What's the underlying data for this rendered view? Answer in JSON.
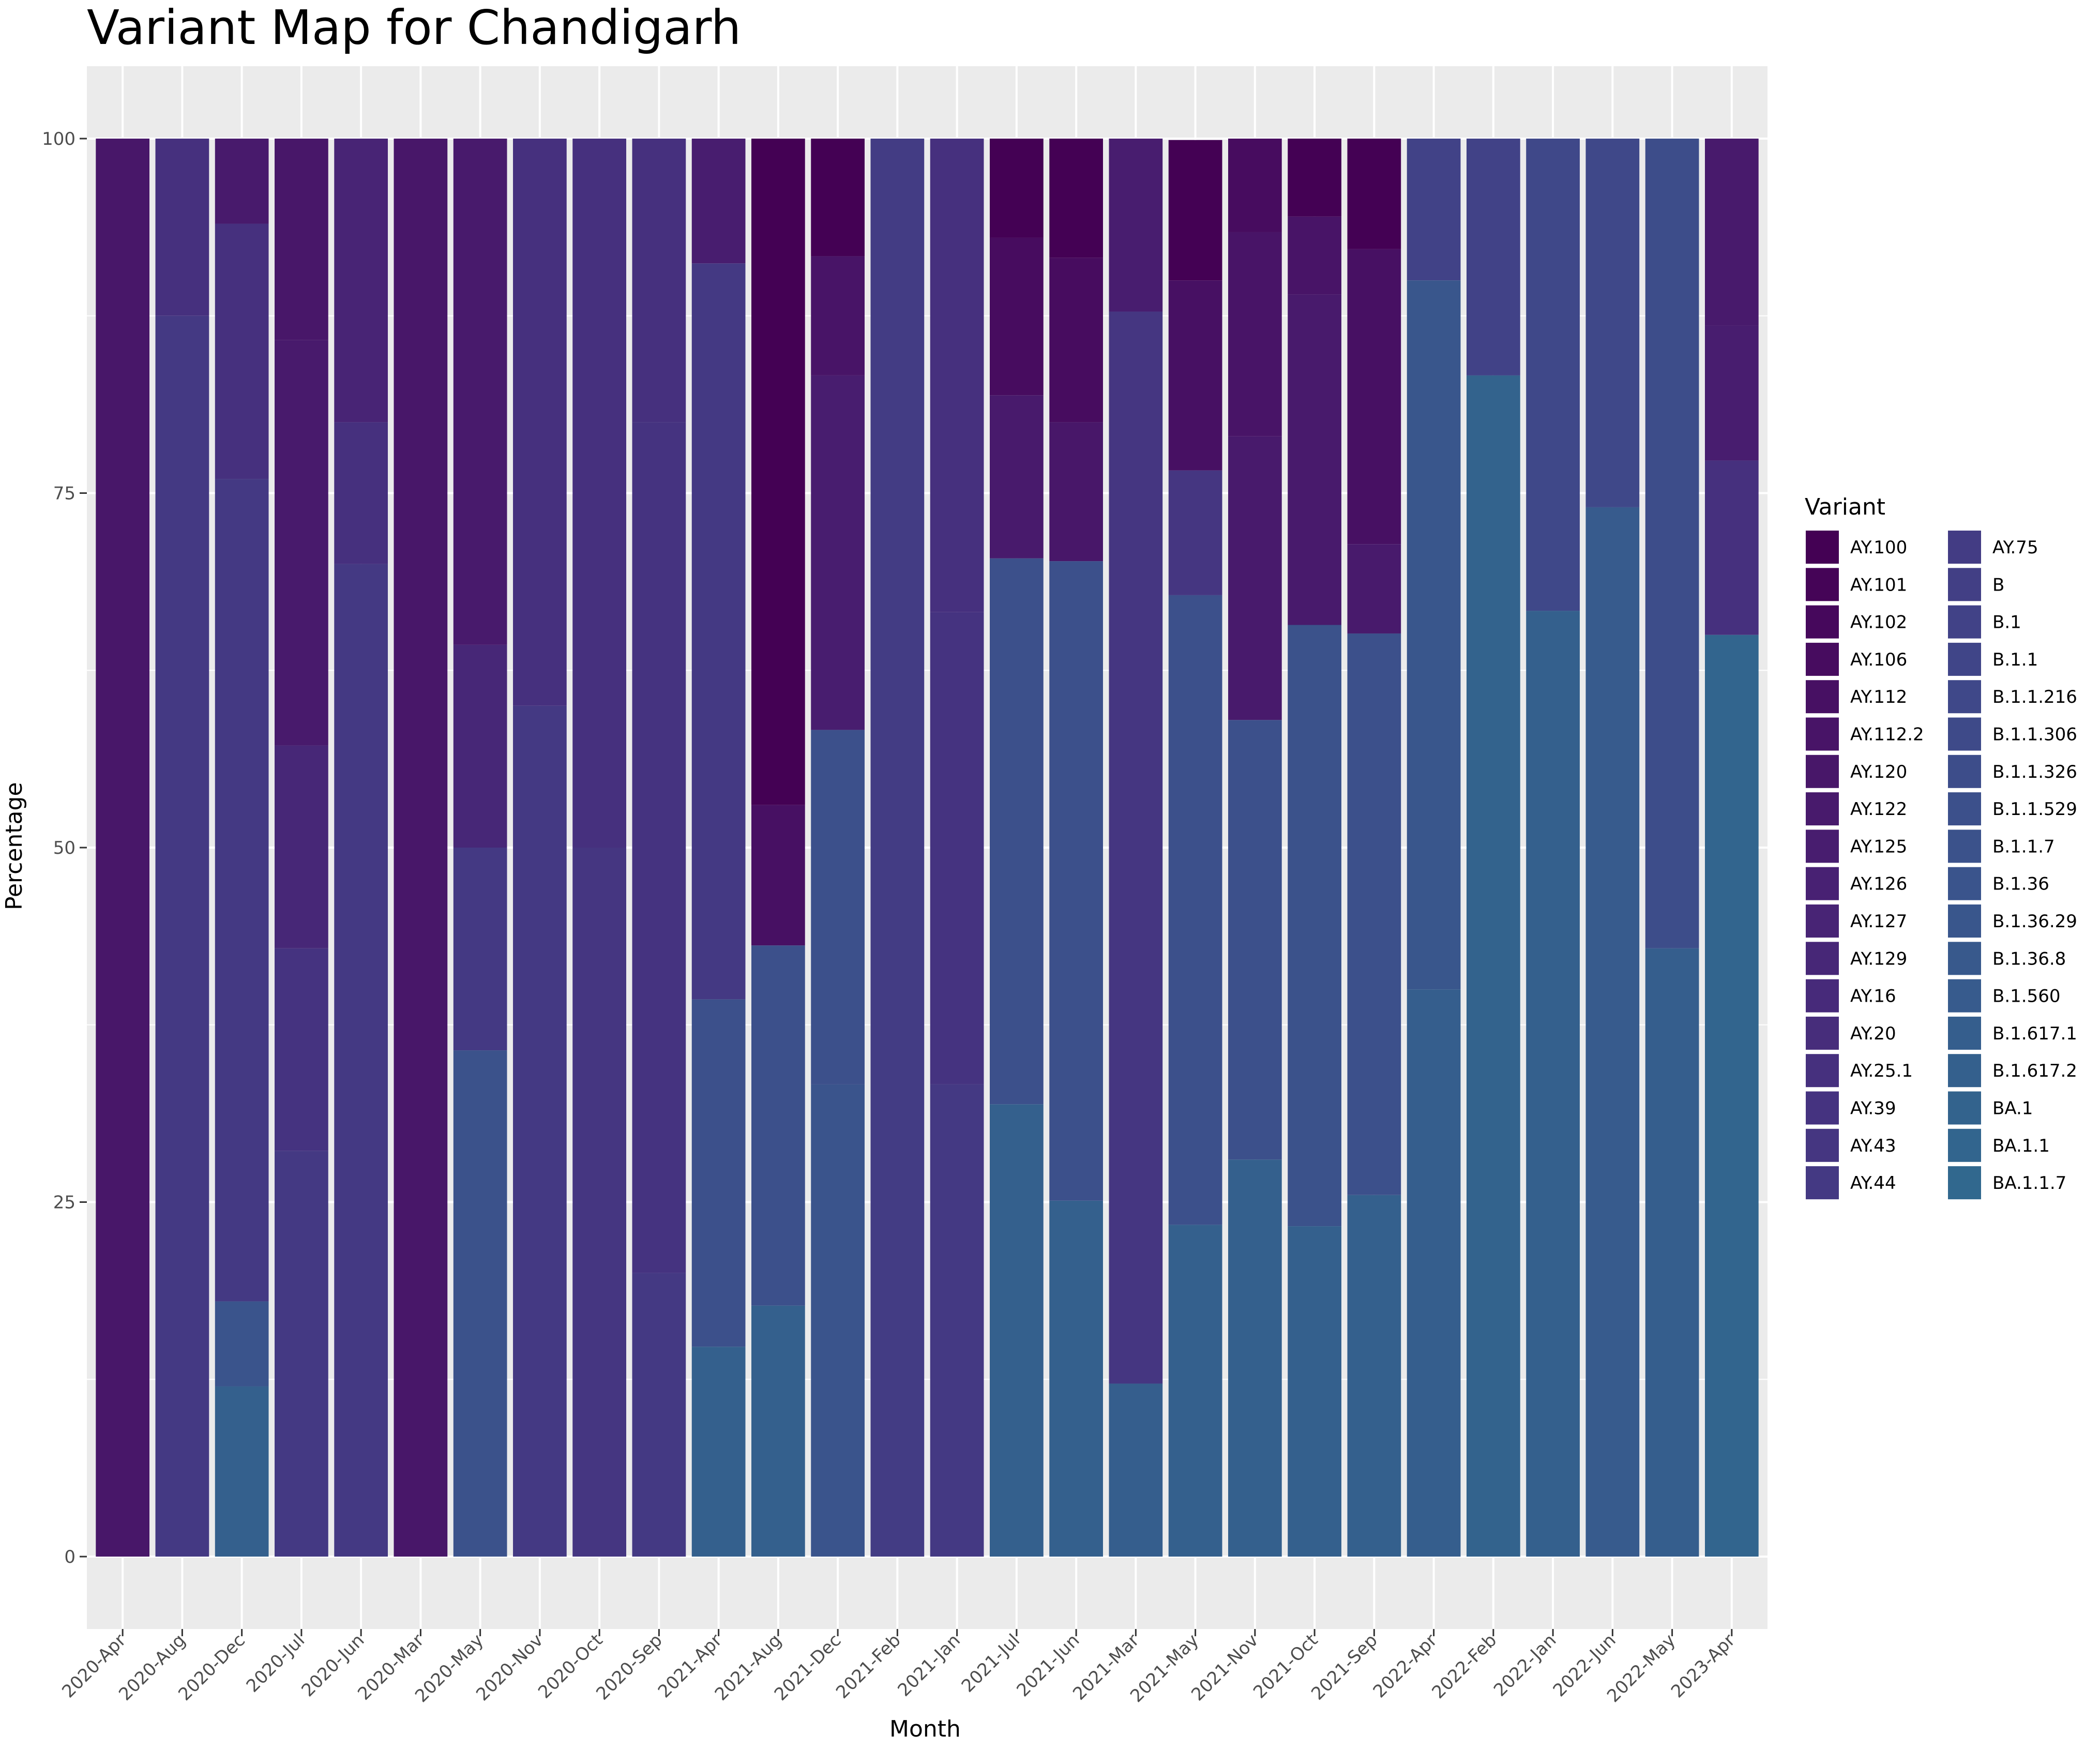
{
  "chart_data": {
    "type": "bar",
    "stacked": true,
    "title": "Variant Map for Chandigarh",
    "xlabel": "Month",
    "ylabel": "Percentage",
    "ylim": [
      0,
      100
    ],
    "yticks": [
      0,
      25,
      50,
      75,
      100
    ],
    "grid": true,
    "legend": {
      "title": "Variant",
      "placement": "right",
      "columns": 2
    },
    "categories": [
      "2020-Apr",
      "2020-Aug",
      "2020-Dec",
      "2020-Jul",
      "2020-Jun",
      "2020-Mar",
      "2020-May",
      "2020-Nov",
      "2020-Oct",
      "2020-Sep",
      "2021-Apr",
      "2021-Aug",
      "2021-Dec",
      "2021-Feb",
      "2021-Jan",
      "2021-Jul",
      "2021-Jun",
      "2021-Mar",
      "2021-May",
      "2021-Nov",
      "2021-Oct",
      "2021-Sep",
      "2022-Apr",
      "2022-Feb",
      "2022-Jan",
      "2022-Jun",
      "2022-May",
      "2023-Apr"
    ],
    "variants": [
      {
        "name": "AY.100",
        "color": "#440154"
      },
      {
        "name": "AY.101",
        "color": "#450457"
      },
      {
        "name": "AY.102",
        "color": "#46085C"
      },
      {
        "name": "AY.106",
        "color": "#470C5F"
      },
      {
        "name": "AY.112",
        "color": "#471063"
      },
      {
        "name": "AY.112.2",
        "color": "#481467"
      },
      {
        "name": "AY.120",
        "color": "#481769"
      },
      {
        "name": "AY.122",
        "color": "#481A6C"
      },
      {
        "name": "AY.125",
        "color": "#481D6F"
      },
      {
        "name": "AY.126",
        "color": "#482173"
      },
      {
        "name": "AY.127",
        "color": "#482475"
      },
      {
        "name": "AY.129",
        "color": "#472777"
      },
      {
        "name": "AY.16",
        "color": "#472A7A"
      },
      {
        "name": "AY.20",
        "color": "#472D7B"
      },
      {
        "name": "AY.25.1",
        "color": "#46307E"
      },
      {
        "name": "AY.39",
        "color": "#453380"
      },
      {
        "name": "AY.43",
        "color": "#453681"
      },
      {
        "name": "AY.44",
        "color": "#443983"
      },
      {
        "name": "AY.75",
        "color": "#433C84"
      },
      {
        "name": "B",
        "color": "#423F85"
      },
      {
        "name": "B.1",
        "color": "#414287"
      },
      {
        "name": "B.1.1",
        "color": "#404588"
      },
      {
        "name": "B.1.1.216",
        "color": "#3F4889"
      },
      {
        "name": "B.1.1.306",
        "color": "#3E4A89"
      },
      {
        "name": "B.1.1.326",
        "color": "#3D4D8A"
      },
      {
        "name": "B.1.1.529",
        "color": "#3C508B"
      },
      {
        "name": "B.1.1.7",
        "color": "#3B528B"
      },
      {
        "name": "B.1.36",
        "color": "#3A548C"
      },
      {
        "name": "B.1.36.29",
        "color": "#39568C"
      },
      {
        "name": "B.1.36.8",
        "color": "#38598C"
      },
      {
        "name": "B.1.560",
        "color": "#375B8D"
      },
      {
        "name": "B.1.617.1",
        "color": "#355E8D"
      },
      {
        "name": "B.1.617.2",
        "color": "#34608D"
      },
      {
        "name": "BA.1",
        "color": "#33638D"
      },
      {
        "name": "BA.1.1",
        "color": "#32658E"
      },
      {
        "name": "BA.1.1.7",
        "color": "#31688E"
      }
    ],
    "stacks": [
      [
        {
          "v": "AY.120",
          "value": 100
        }
      ],
      [
        {
          "v": "AY.44",
          "value": 87.5
        },
        {
          "v": "AY.25.1",
          "value": 12.5
        }
      ],
      [
        {
          "v": "B.1.617.2",
          "value": 12
        },
        {
          "v": "B.1.36",
          "value": 6
        },
        {
          "v": "AY.44",
          "value": 58
        },
        {
          "v": "AY.25.1",
          "value": 18
        },
        {
          "v": "AY.122",
          "value": 6
        }
      ],
      [
        {
          "v": "AY.44",
          "value": 28.6
        },
        {
          "v": "AY.39",
          "value": 14.3
        },
        {
          "v": "AY.129",
          "value": 14.3
        },
        {
          "v": "AY.122",
          "value": 28.6
        },
        {
          "v": "AY.120",
          "value": 14.2
        }
      ],
      [
        {
          "v": "AY.44",
          "value": 70
        },
        {
          "v": "AY.25.1",
          "value": 10
        },
        {
          "v": "AY.127",
          "value": 20
        }
      ],
      [
        {
          "v": "AY.120",
          "value": 100
        }
      ],
      [
        {
          "v": "B.1.1.7",
          "value": 35.7
        },
        {
          "v": "AY.44",
          "value": 14.3
        },
        {
          "v": "AY.129",
          "value": 14.3
        },
        {
          "v": "AY.122",
          "value": 35.7
        }
      ],
      [
        {
          "v": "AY.44",
          "value": 60
        },
        {
          "v": "AY.25.1",
          "value": 40
        }
      ],
      [
        {
          "v": "AY.43",
          "value": 50
        },
        {
          "v": "AY.25.1",
          "value": 50
        }
      ],
      [
        {
          "v": "AY.44",
          "value": 20
        },
        {
          "v": "AY.39",
          "value": 60
        },
        {
          "v": "AY.25.1",
          "value": 20
        }
      ],
      [
        {
          "v": "B.1.617.2",
          "value": 14.8
        },
        {
          "v": "B.1.1.529",
          "value": 24.5
        },
        {
          "v": "AY.44",
          "value": 51.9
        },
        {
          "v": "AY.125",
          "value": 8.8
        }
      ],
      [
        {
          "v": "B.1.617.2",
          "value": 17.7
        },
        {
          "v": "B.1.1.529",
          "value": 25.4
        },
        {
          "v": "AY.112",
          "value": 9.9
        },
        {
          "v": "AY.100",
          "value": 47
        }
      ],
      [
        {
          "v": "B.1.36",
          "value": 33.3
        },
        {
          "v": "B.1.1.529",
          "value": 25
        },
        {
          "v": "AY.125",
          "value": 25
        },
        {
          "v": "AY.112.2",
          "value": 8.4
        },
        {
          "v": "AY.100",
          "value": 8.3
        }
      ],
      [
        {
          "v": "AY.75",
          "value": 100
        }
      ],
      [
        {
          "v": "AY.44",
          "value": 33.3
        },
        {
          "v": "AY.39",
          "value": 33.3
        },
        {
          "v": "AY.25.1",
          "value": 33.4
        }
      ],
      [
        {
          "v": "B.1.617.2",
          "value": 31.9
        },
        {
          "v": "B.1.1.529",
          "value": 38.5
        },
        {
          "v": "AY.122",
          "value": 11.5
        },
        {
          "v": "AY.106",
          "value": 11.1
        },
        {
          "v": "AY.100",
          "value": 7
        }
      ],
      [
        {
          "v": "B.1.617.2",
          "value": 25.1
        },
        {
          "v": "B.1.1.529",
          "value": 45.1
        },
        {
          "v": "AY.120",
          "value": 9.8
        },
        {
          "v": "AY.106",
          "value": 11.6
        },
        {
          "v": "AY.100",
          "value": 8.4
        }
      ],
      [
        {
          "v": "B.1.617.1",
          "value": 12.2
        },
        {
          "v": "AY.43",
          "value": 75.6
        },
        {
          "v": "AY.125",
          "value": 12.2
        }
      ],
      [
        {
          "v": "B.1.617.2",
          "value": 23.4
        },
        {
          "v": "B.1.1.529",
          "value": 44.4
        },
        {
          "v": "AY.43",
          "value": 8.8
        },
        {
          "v": "AY.112",
          "value": 13.4
        },
        {
          "v": "AY.100",
          "value": 9.9
        }
      ],
      [
        {
          "v": "B.1.617.2",
          "value": 28
        },
        {
          "v": "B.1.1.529",
          "value": 31
        },
        {
          "v": "AY.122",
          "value": 20
        },
        {
          "v": "AY.112.2",
          "value": 14.4
        },
        {
          "v": "AY.106",
          "value": 6.6
        }
      ],
      [
        {
          "v": "B.1.617.2",
          "value": 23.3
        },
        {
          "v": "B.1.1.7",
          "value": 42.4
        },
        {
          "v": "AY.122",
          "value": 23.3
        },
        {
          "v": "AY.112.2",
          "value": 5.5
        },
        {
          "v": "AY.100",
          "value": 5.5
        }
      ],
      [
        {
          "v": "B.1.617.2",
          "value": 25.5
        },
        {
          "v": "B.1.1.529",
          "value": 39.6
        },
        {
          "v": "AY.122",
          "value": 6.3
        },
        {
          "v": "AY.112",
          "value": 20.8
        },
        {
          "v": "AY.100",
          "value": 7.8
        }
      ],
      [
        {
          "v": "B.1.617.1",
          "value": 40
        },
        {
          "v": "B.1.36.29",
          "value": 50
        },
        {
          "v": "B.1",
          "value": 10
        }
      ],
      [
        {
          "v": "BA.1",
          "value": 83.3
        },
        {
          "v": "B.1",
          "value": 16.7
        }
      ],
      [
        {
          "v": "B.1.617.2",
          "value": 66.7
        },
        {
          "v": "B.1.1.216",
          "value": 33.3
        }
      ],
      [
        {
          "v": "B.1.560",
          "value": 74
        },
        {
          "v": "B.1.1.216",
          "value": 26
        }
      ],
      [
        {
          "v": "B.1.617.1",
          "value": 42.9
        },
        {
          "v": "B.1.1.326",
          "value": 57.1
        }
      ],
      [
        {
          "v": "BA.1.1",
          "value": 65
        },
        {
          "v": "AY.25.1",
          "value": 12.3
        },
        {
          "v": "AY.125",
          "value": 9.5
        },
        {
          "v": "AY.122",
          "value": 13.2
        }
      ]
    ]
  }
}
